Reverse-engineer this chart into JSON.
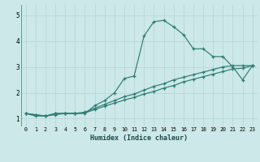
{
  "xlabel": "Humidex (Indice chaleur)",
  "background_color": "#cce8e8",
  "grid_color": "#b8d8d8",
  "line_color": "#2d7d74",
  "xlim": [
    -0.5,
    23.5
  ],
  "ylim": [
    0.7,
    5.4
  ],
  "xticks": [
    0,
    1,
    2,
    3,
    4,
    5,
    6,
    7,
    8,
    9,
    10,
    11,
    12,
    13,
    14,
    15,
    16,
    17,
    18,
    19,
    20,
    21,
    22,
    23
  ],
  "yticks": [
    1,
    2,
    3,
    4,
    5
  ],
  "series": [
    [
      1.2,
      1.1,
      1.1,
      1.2,
      1.2,
      1.2,
      1.2,
      1.5,
      1.7,
      2.0,
      2.55,
      2.65,
      4.2,
      4.75,
      4.8,
      4.55,
      4.25,
      3.7,
      3.7,
      3.4,
      3.4,
      3.0,
      2.5,
      3.05
    ],
    [
      1.2,
      1.15,
      1.1,
      1.2,
      1.2,
      1.2,
      1.25,
      1.4,
      1.55,
      1.7,
      1.85,
      1.95,
      2.1,
      2.25,
      2.35,
      2.5,
      2.6,
      2.7,
      2.8,
      2.9,
      3.0,
      3.05,
      3.05,
      3.05
    ],
    [
      1.2,
      1.15,
      1.1,
      1.15,
      1.2,
      1.2,
      1.22,
      1.35,
      1.48,
      1.6,
      1.72,
      1.82,
      1.95,
      2.05,
      2.18,
      2.28,
      2.42,
      2.52,
      2.62,
      2.72,
      2.82,
      2.92,
      2.95,
      3.05
    ]
  ]
}
